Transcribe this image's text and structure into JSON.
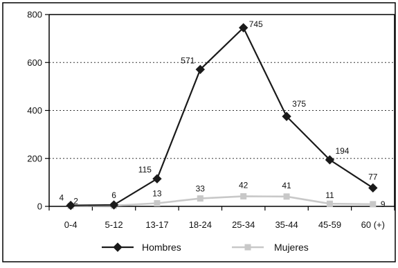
{
  "chart_data": {
    "type": "line",
    "title": "",
    "xlabel": "",
    "ylabel": "",
    "categories": [
      "0-4",
      "5-12",
      "13-17",
      "18-24",
      "25-34",
      "35-44",
      "45-59",
      "60 (+)"
    ],
    "ylim": [
      0,
      800
    ],
    "yticks": [
      0,
      200,
      400,
      600,
      800
    ],
    "grid": "dotted horizontal at 200, 400, 600",
    "legend_position": "bottom",
    "series": [
      {
        "name": "Hombres",
        "values": [
          4,
          6,
          115,
          571,
          745,
          375,
          194,
          77
        ],
        "color": "#1a1a1a",
        "marker": "diamond",
        "labels": [
          "4",
          "6",
          "115",
          "571",
          "745",
          "375",
          "194",
          "77"
        ]
      },
      {
        "name": "Mujeres",
        "values": [
          2,
          3,
          13,
          33,
          42,
          41,
          11,
          9
        ],
        "color": "#c8c8c8",
        "marker": "square",
        "labels": [
          "2",
          "",
          "13",
          "33",
          "42",
          "41",
          "11",
          "9"
        ]
      }
    ]
  }
}
